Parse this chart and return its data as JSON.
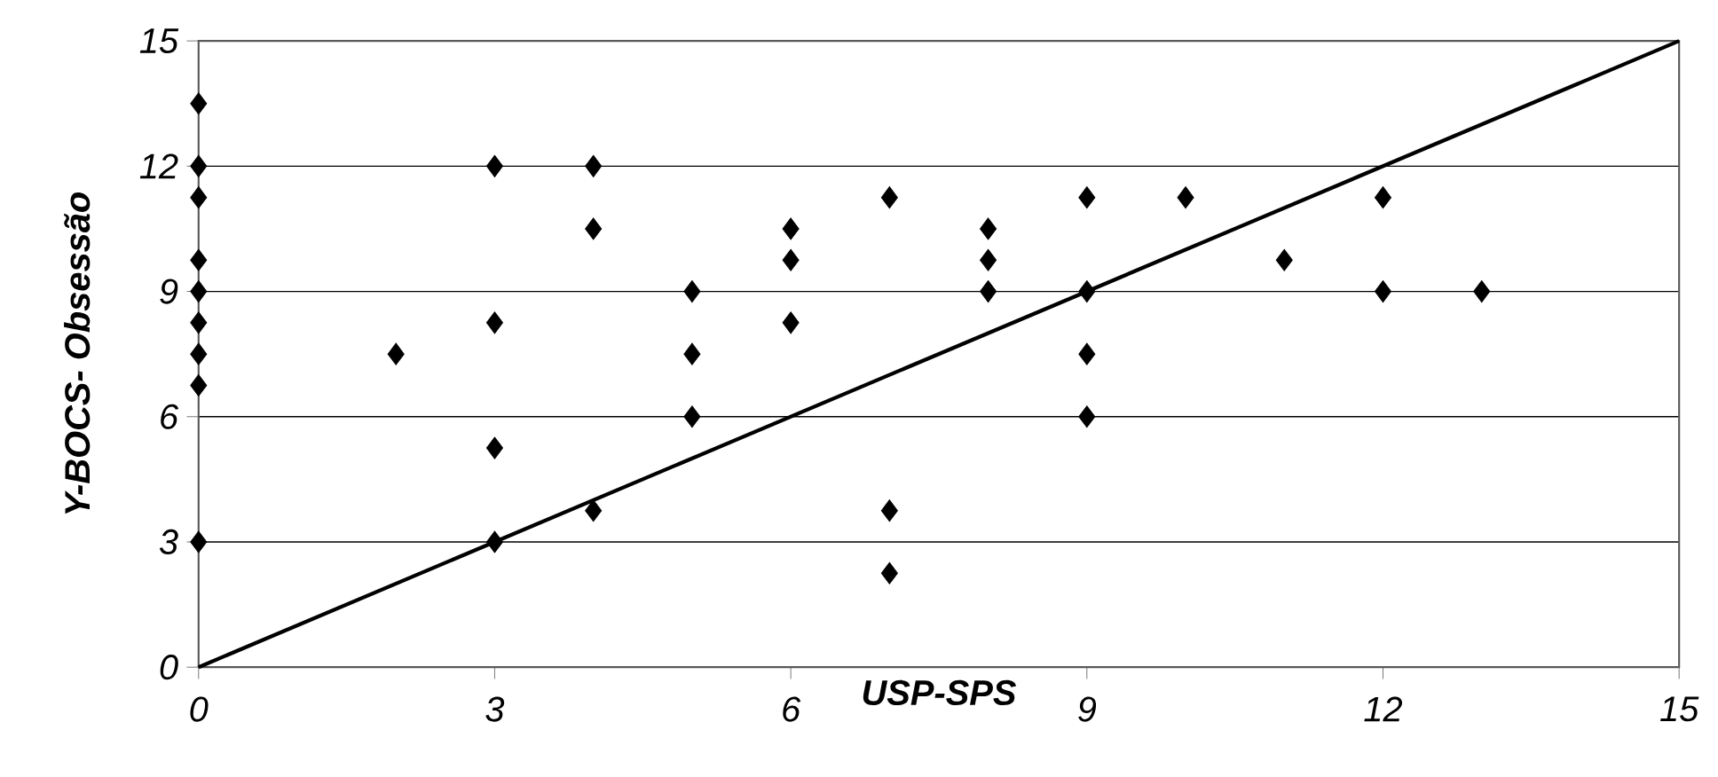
{
  "chart_data": {
    "type": "scatter",
    "xlabel": "USP-SPS",
    "ylabel": "Y-BOCS- Obsessão",
    "xlim": [
      0,
      15
    ],
    "ylim": [
      0,
      15
    ],
    "xticks": [
      0,
      3,
      6,
      9,
      12,
      15
    ],
    "yticks": [
      0,
      3,
      6,
      9,
      12,
      15
    ],
    "grid": "y",
    "series": [
      {
        "color": "#000000",
        "marker": "diamond",
        "x": [
          0,
          0,
          0,
          0,
          0,
          0,
          0,
          0,
          0,
          2,
          3,
          3,
          3,
          3,
          4,
          4,
          4,
          5,
          5,
          5,
          6,
          6,
          6,
          7,
          7,
          7,
          8,
          8,
          8,
          9,
          9,
          9,
          9,
          10,
          11,
          12,
          12,
          13
        ],
        "values": [
          13.5,
          12,
          11.25,
          9.75,
          9,
          8.25,
          7.5,
          6.75,
          3,
          7.5,
          12,
          8.25,
          5.25,
          3,
          12,
          10.5,
          3.75,
          9,
          7.5,
          6,
          10.5,
          9.75,
          8.25,
          11.25,
          3.75,
          2.25,
          10.5,
          9.75,
          9,
          11.25,
          9,
          7.5,
          6,
          11.25,
          9.75,
          11.25,
          9,
          9
        ]
      },
      {
        "type": "line",
        "color": "#000000",
        "marker": "none",
        "line_style": "solid",
        "x": [
          0,
          15
        ],
        "values": [
          0,
          15
        ]
      }
    ]
  }
}
